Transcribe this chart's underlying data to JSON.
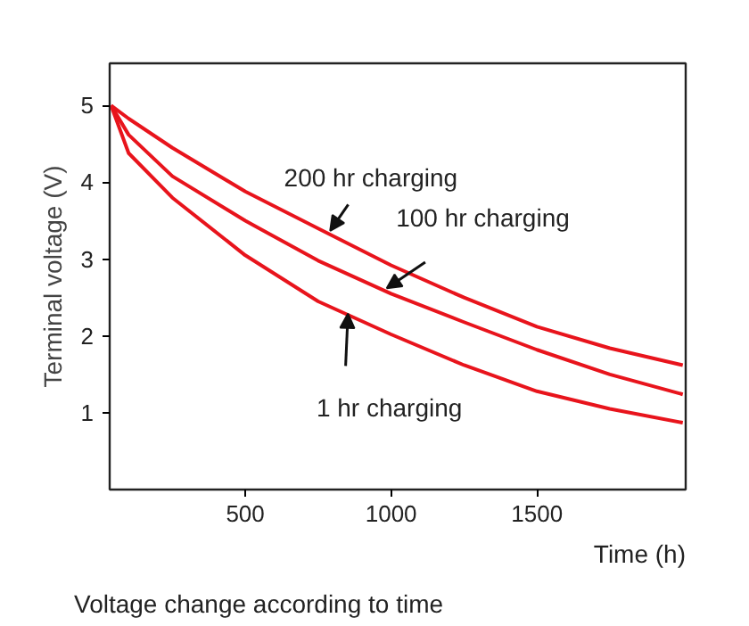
{
  "chart_data": {
    "type": "line",
    "xlabel": "Time (h)",
    "ylabel": "Terminal voltage (V)",
    "x": [
      40,
      100,
      250,
      500,
      750,
      1000,
      1250,
      1500,
      1750,
      2000
    ],
    "series": [
      {
        "color": "#e8141c",
        "values": [
          5,
          4.83,
          4.45,
          3.88,
          3.4,
          2.92,
          2.5,
          2.12,
          1.84,
          1.62
        ]
      },
      {
        "color": "#e8141c",
        "values": [
          5,
          4.62,
          4.08,
          3.5,
          2.98,
          2.55,
          2.18,
          1.82,
          1.5,
          1.24
        ]
      },
      {
        "color": "#e8141c",
        "values": [
          5,
          4.38,
          3.8,
          3.05,
          2.45,
          2.02,
          1.62,
          1.28,
          1.05,
          0.87
        ]
      }
    ],
    "xlim": [
      35,
      2010
    ],
    "ylim": [
      0,
      5.55
    ],
    "xticks": [
      500,
      1000,
      1500
    ],
    "yticks": [
      1,
      2,
      3,
      4,
      5
    ],
    "grid": false,
    "marker": "none",
    "line_style": "solid",
    "annotations": [
      {
        "text": "200 hr charging",
        "x": 783,
        "y": 3.33
      },
      {
        "text": "100 hr charging",
        "x": 977,
        "y": 2.58
      },
      {
        "text": "1 hr charging",
        "x": 844,
        "y": 2.33
      },
      "Voltage change according to time"
    ]
  }
}
